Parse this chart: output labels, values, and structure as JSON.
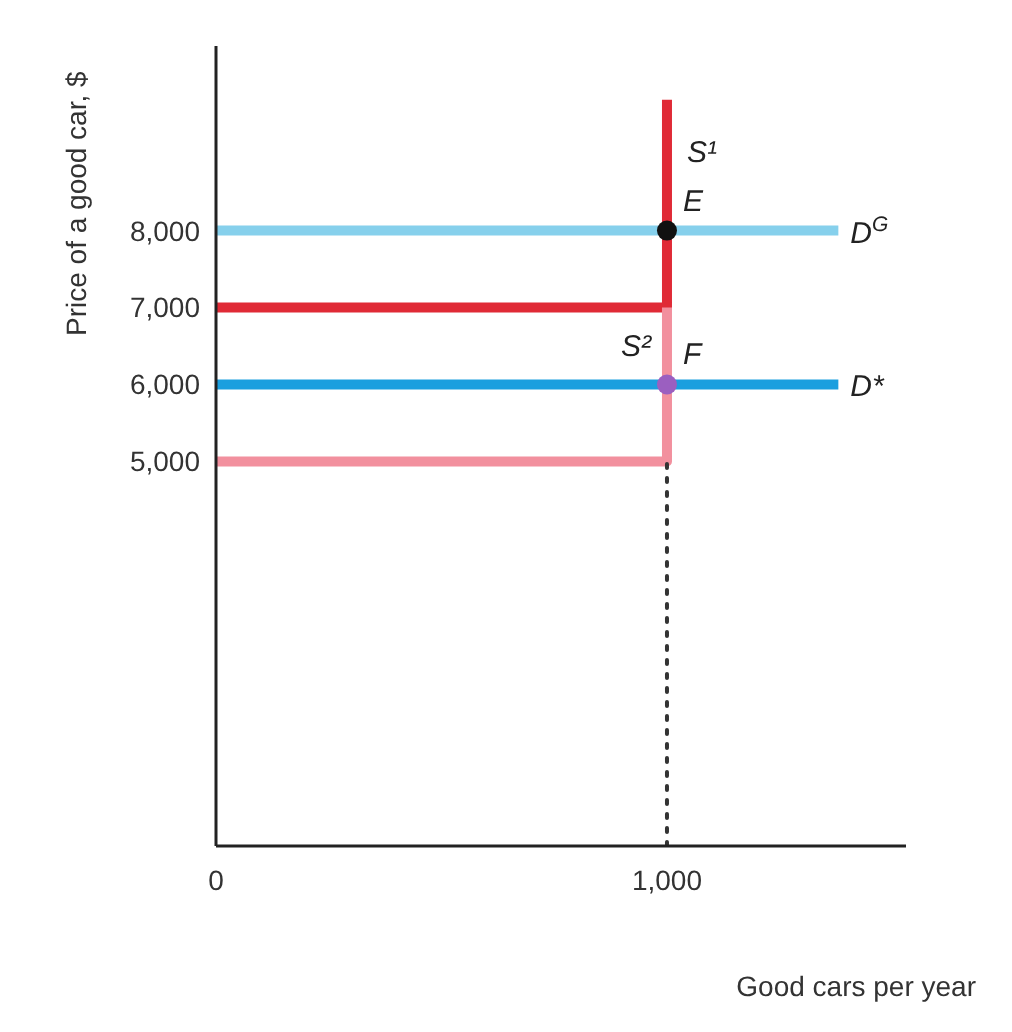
{
  "chart_data": {
    "type": "line",
    "xlabel": "Good cars per year",
    "ylabel": "Price of a good car, $",
    "xlim": [
      0,
      1530
    ],
    "ylim": [
      0,
      10400
    ],
    "xticks": [
      0,
      {
        "value": 1000,
        "label": "1,000"
      }
    ],
    "yticks": [
      {
        "value": 5000,
        "label": "5,000"
      },
      {
        "value": 6000,
        "label": "6,000"
      },
      {
        "value": 7000,
        "label": "7,000"
      },
      {
        "value": 8000,
        "label": "8,000"
      }
    ],
    "grid": false,
    "legend": false,
    "marker": "none",
    "line_style": "solid",
    "series": [
      {
        "name": "D$^{G}$",
        "color": "#86d0ec",
        "x": [
          0,
          1380
        ],
        "values": [
          8000,
          8000
        ]
      },
      {
        "name": "S¹",
        "color": "#e02a36",
        "x": [
          0,
          1000,
          1000
        ],
        "values": [
          7000,
          7000,
          9700
        ]
      },
      {
        "name": "D*",
        "color": "#1a9fdf",
        "x": [
          0,
          1380
        ],
        "values": [
          6000,
          6000
        ]
      },
      {
        "name": "S²",
        "color": "#f2909e",
        "x": [
          0,
          1000,
          1000
        ],
        "values": [
          5000,
          5000,
          7000
        ]
      },
      {
        "type": "line",
        "line_style": "dotted",
        "color": "#333333",
        "x": [
          1000,
          1000
        ],
        "values": [
          0,
          5000
        ]
      },
      {
        "type": "scatter",
        "marker": "circle",
        "color": "#111111",
        "x": [
          1000
        ],
        "values": [
          8000
        ]
      },
      {
        "type": "scatter",
        "marker": "circle",
        "color": "#9b5fc0",
        "x": [
          1000
        ],
        "values": [
          6000
        ]
      }
    ],
    "annotations": [
      {
        "text": "E",
        "x": 1000,
        "y": 8000
      },
      {
        "text": "F",
        "x": 1000,
        "y": 6000
      }
    ]
  }
}
